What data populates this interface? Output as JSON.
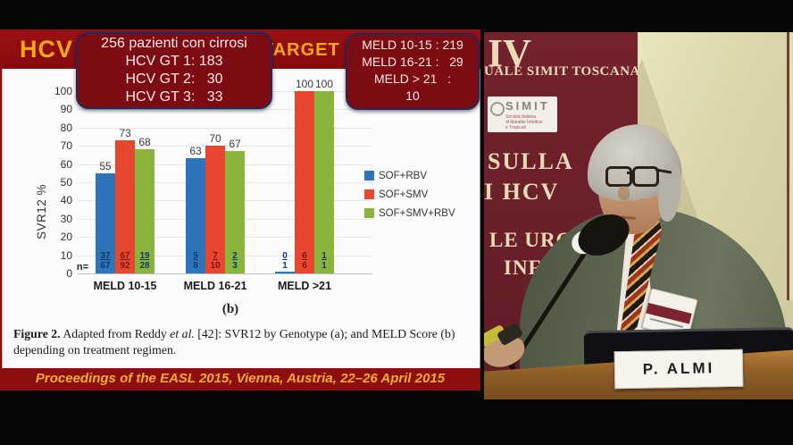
{
  "slide": {
    "banner": {
      "hcv": "HCV",
      "target": "TARGET",
      "bg_color": "#8e0e10",
      "text_color": "#f3a81f"
    },
    "overlay_cirrhosis": {
      "lines": [
        "256 pazienti con cirrosi",
        "HCV GT 1: 183",
        "HCV GT 2:   30",
        "HCV GT 3:   33"
      ]
    },
    "overlay_meld": {
      "lines": [
        "MELD 10-15 : 219",
        "MELD 16-21 :   29",
        "MELD > 21   :",
        "10"
      ]
    },
    "caption": {
      "fig_label": "Figure 2.",
      "pre": " Adapted from Reddy ",
      "italic": "et al.",
      "post": " [42]: SVR12 by Genotype (a); and MELD Score (b) depending on treatment regimen."
    },
    "footer": "Proceedings of the EASL 2015, Vienna, Austria, 22–26 April 2015"
  },
  "chart_data": {
    "type": "bar",
    "title": "",
    "xlabel": "",
    "ylabel": "SVR12 %",
    "ylim": [
      0,
      100
    ],
    "yticks": [
      0,
      10,
      20,
      30,
      40,
      50,
      60,
      70,
      80,
      90,
      100
    ],
    "grid": true,
    "legend_position": "right",
    "panel_label": "(b)",
    "n_label": "n=",
    "categories": [
      "MELD 10-15",
      "MELD 16-21",
      "MELD >21"
    ],
    "series": [
      {
        "name": "SOF+RBV",
        "color": "#2e74b9",
        "fraction_color": "#0d3a6b",
        "values": [
          55,
          63,
          0
        ],
        "fractions": [
          "37/67",
          "5/8",
          "0/1"
        ]
      },
      {
        "name": "SOF+SMV",
        "color": "#e8472f",
        "fraction_color": "#7e150b",
        "values": [
          73,
          70,
          100
        ],
        "fractions": [
          "67/92",
          "7/10",
          "6/6"
        ]
      },
      {
        "name": "SOF+SMV+RBV",
        "color": "#8ab43c",
        "fraction_color": "#0d3a6b",
        "values": [
          68,
          67,
          100
        ],
        "fractions": [
          "19/28",
          "2/3",
          "1/1"
        ]
      }
    ]
  },
  "photo": {
    "rollup_banner": {
      "line_iv": "IV",
      "line_simit_toscana": "UALE SIMIT TOSCANA",
      "simit_logo_title": "SIMIT",
      "simit_logo_sub1": "Società Italiana",
      "simit_logo_sub2": "di Malattie Infettive",
      "simit_logo_sub3": "e Tropicali",
      "line_sulla": "SULLA",
      "line_hcv": "I HCV",
      "line_urg": "LE URG",
      "line_infe": "INFE",
      "bg_color": "#6a1f29"
    },
    "name_plate": "P. ALMI",
    "wall_color": "#d5d1a3",
    "podium_color": "#8d5d26"
  }
}
